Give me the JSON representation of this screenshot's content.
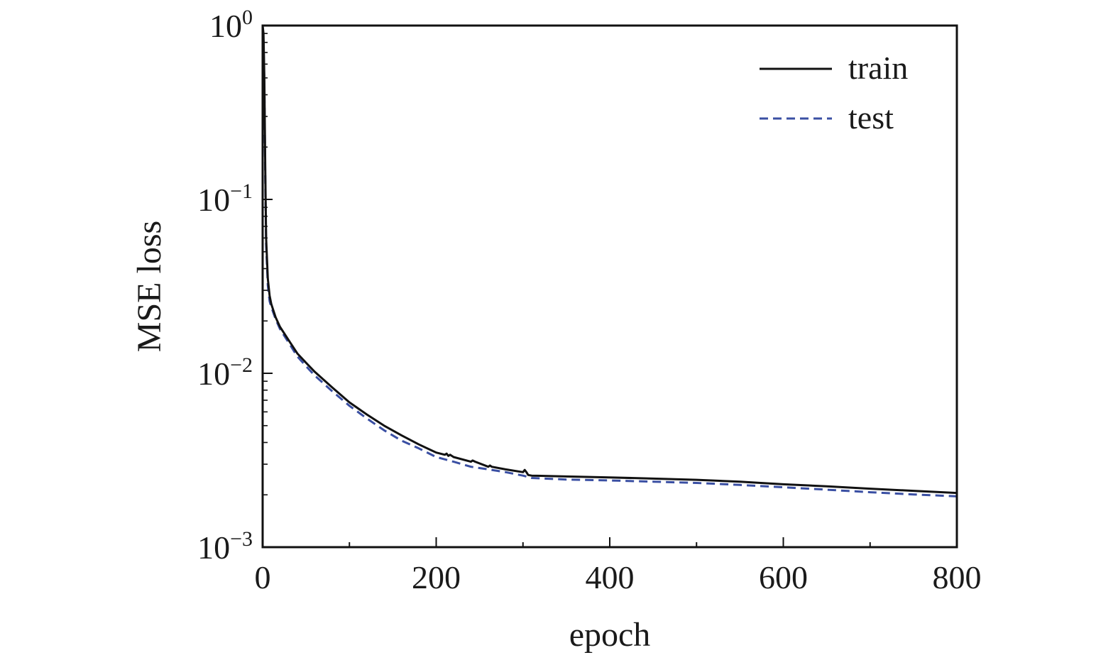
{
  "chart_data": {
    "type": "line",
    "title": "",
    "xlabel": "epoch",
    "ylabel": "MSE loss",
    "xlim": [
      0,
      800
    ],
    "ylim": [
      0.001,
      1
    ],
    "yscale": "log",
    "grid": false,
    "legend_position": "top-right",
    "x_ticks": [
      0,
      200,
      400,
      600,
      800
    ],
    "x_minor_ticks": [
      100,
      300,
      500,
      700
    ],
    "y_ticks": [
      {
        "value": 1,
        "base": "10",
        "exp": "0"
      },
      {
        "value": 0.1,
        "base": "10",
        "exp": "−1"
      },
      {
        "value": 0.01,
        "base": "10",
        "exp": "−2"
      },
      {
        "value": 0.001,
        "base": "10",
        "exp": "−3"
      }
    ],
    "series": [
      {
        "name": "train",
        "color": "#111111",
        "style": "solid",
        "x": [
          0,
          1,
          2,
          3,
          4,
          6,
          8,
          10,
          15,
          20,
          30,
          40,
          50,
          60,
          80,
          100,
          120,
          140,
          160,
          180,
          200,
          210,
          212,
          214,
          216,
          220,
          240,
          242,
          245,
          260,
          262,
          264,
          280,
          300,
          302,
          304,
          306,
          310,
          350,
          400,
          450,
          500,
          550,
          600,
          650,
          700,
          750,
          800
        ],
        "y": [
          1.0,
          0.9,
          0.5,
          0.15,
          0.06,
          0.035,
          0.028,
          0.025,
          0.021,
          0.0185,
          0.0155,
          0.013,
          0.0115,
          0.0102,
          0.0083,
          0.0068,
          0.0058,
          0.005,
          0.0044,
          0.0039,
          0.0035,
          0.0034,
          0.00345,
          0.00335,
          0.0034,
          0.0033,
          0.0031,
          0.00315,
          0.0031,
          0.0029,
          0.00295,
          0.0029,
          0.0028,
          0.0027,
          0.00278,
          0.0027,
          0.0026,
          0.00258,
          0.00255,
          0.00252,
          0.00248,
          0.00244,
          0.00238,
          0.0023,
          0.00224,
          0.00217,
          0.00211,
          0.00205
        ]
      },
      {
        "name": "test",
        "color": "#3a4fa3",
        "style": "dashed",
        "x": [
          0,
          1,
          2,
          3,
          4,
          6,
          8,
          10,
          15,
          20,
          30,
          40,
          50,
          60,
          80,
          100,
          120,
          140,
          160,
          180,
          200,
          220,
          240,
          260,
          280,
          300,
          310,
          350,
          400,
          450,
          500,
          550,
          600,
          650,
          700,
          750,
          800
        ],
        "y": [
          0.98,
          0.85,
          0.45,
          0.13,
          0.055,
          0.032,
          0.026,
          0.024,
          0.0205,
          0.018,
          0.015,
          0.0125,
          0.011,
          0.0097,
          0.0079,
          0.0065,
          0.0055,
          0.0047,
          0.0041,
          0.0037,
          0.0033,
          0.0031,
          0.0029,
          0.0028,
          0.0027,
          0.00258,
          0.0025,
          0.00245,
          0.00242,
          0.00238,
          0.00234,
          0.00228,
          0.00221,
          0.00214,
          0.00207,
          0.00201,
          0.00196
        ]
      }
    ]
  }
}
